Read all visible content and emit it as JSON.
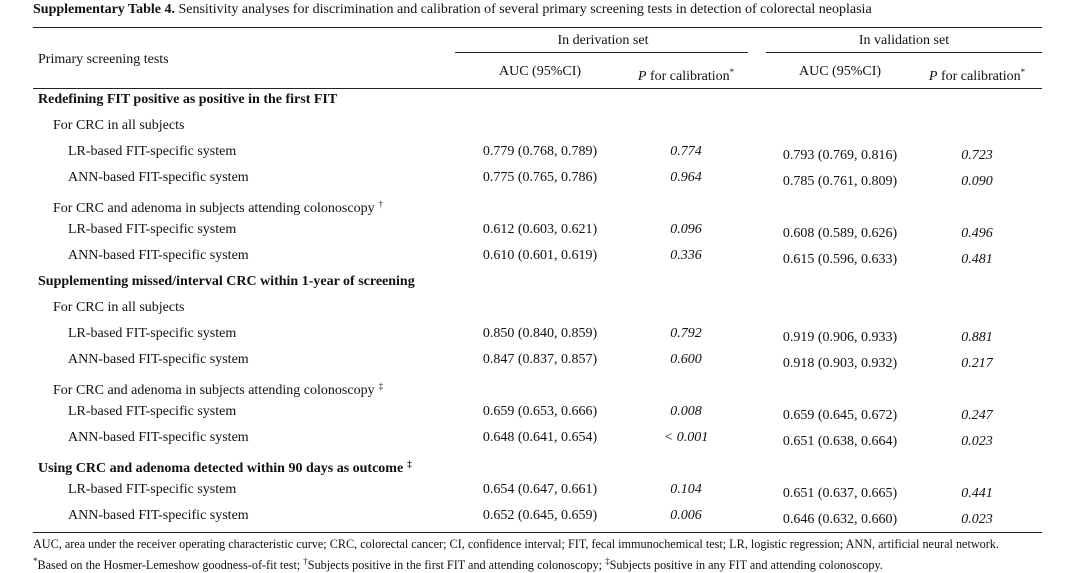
{
  "title": {
    "label": "Supplementary Table 4.",
    "text": " Sensitivity analyses for discrimination and calibration of several primary screening tests in detection of colorectal neoplasia"
  },
  "table": {
    "header": {
      "first": "Primary screening tests",
      "groups": [
        "In derivation set",
        "In validation set"
      ],
      "sub": [
        {
          "text": "AUC (95%CI)"
        },
        {
          "p": "P",
          "text": " for calibration",
          "mark": "*"
        },
        {
          "text": "AUC (95%CI)"
        },
        {
          "p": "P",
          "text": " for calibration",
          "mark": "*"
        }
      ]
    },
    "sections": [
      {
        "title": "Redefining FIT positive as positive in the first FIT",
        "groups": [
          {
            "title": "For CRC in all subjects",
            "rows": [
              {
                "label": "LR-based FIT-specific system",
                "cells": [
                  "0.779 (0.768, 0.789)",
                  "0.774",
                  "0.793 (0.769, 0.816)",
                  "0.723"
                ]
              },
              {
                "label": "ANN-based FIT-specific system",
                "cells": [
                  "0.775 (0.765, 0.786)",
                  "0.964",
                  "0.785 (0.761, 0.809)",
                  "0.090"
                ]
              }
            ]
          },
          {
            "title": "For CRC and adenoma in subjects attending colonoscopy",
            "mark": "†",
            "rows": [
              {
                "label": "LR-based FIT-specific system",
                "cells": [
                  "0.612 (0.603, 0.621)",
                  "0.096",
                  "0.608 (0.589, 0.626)",
                  "0.496"
                ]
              },
              {
                "label": "ANN-based FIT-specific system",
                "cells": [
                  "0.610 (0.601, 0.619)",
                  "0.336",
                  "0.615 (0.596, 0.633)",
                  "0.481"
                ]
              }
            ]
          }
        ]
      },
      {
        "title": "Supplementing missed/interval CRC within 1-year of screening",
        "groups": [
          {
            "title": "For CRC in all subjects",
            "rows": [
              {
                "label": "LR-based FIT-specific system",
                "cells": [
                  "0.850 (0.840, 0.859)",
                  "0.792",
                  "0.919 (0.906, 0.933)",
                  "0.881"
                ]
              },
              {
                "label": "ANN-based FIT-specific system",
                "cells": [
                  "0.847 (0.837, 0.857)",
                  "0.600",
                  "0.918 (0.903, 0.932)",
                  "0.217"
                ]
              }
            ]
          },
          {
            "title": "For CRC and adenoma in subjects attending colonoscopy",
            "mark": "‡",
            "rows": [
              {
                "label": "LR-based FIT-specific system",
                "cells": [
                  "0.659 (0.653, 0.666)",
                  "0.008",
                  "0.659 (0.645, 0.672)",
                  "0.247"
                ]
              },
              {
                "label": "ANN-based FIT-specific system",
                "cells": [
                  "0.648 (0.641, 0.654)",
                  "< 0.001",
                  "0.651 (0.638, 0.664)",
                  "0.023"
                ]
              }
            ]
          }
        ]
      },
      {
        "title": "Using CRC and adenoma detected within 90 days as outcome",
        "mark": "‡",
        "rows": [
          {
            "label": "LR-based FIT-specific system",
            "cells": [
              "0.654 (0.647, 0.661)",
              "0.104",
              "0.651 (0.637, 0.665)",
              "0.441"
            ]
          },
          {
            "label": "ANN-based FIT-specific system",
            "cells": [
              "0.652 (0.645, 0.659)",
              "0.006",
              "0.646 (0.632, 0.660)",
              "0.023"
            ]
          }
        ]
      }
    ]
  },
  "footnote": [
    "AUC, area under the receiver operating characteristic curve; CRC, colorectal cancer; CI, confidence interval; FIT, fecal immunochemical test; LR, logistic regression; ANN, artificial neural network. ",
    "*",
    "Based on the Hosmer-Lemeshow goodness-of-fit test; ",
    "†",
    "Subjects positive in the first FIT and attending colonoscopy; ",
    "‡",
    "Subjects positive in any FIT and attending colonoscopy."
  ]
}
